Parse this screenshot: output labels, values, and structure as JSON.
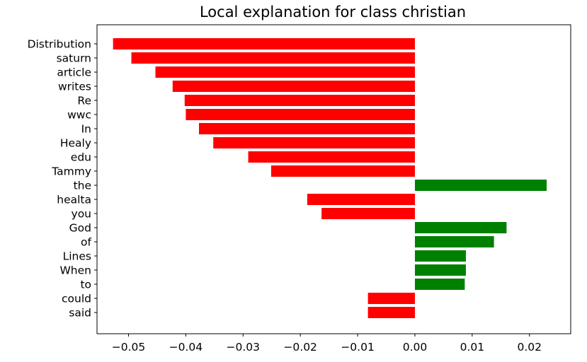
{
  "chart_data": {
    "type": "bar",
    "orientation": "horizontal",
    "title": "Local explanation for class christian",
    "xlabel": "",
    "ylabel": "",
    "xlim": [
      -0.0555,
      0.0272
    ],
    "grid": false,
    "legend": "none",
    "colors": {
      "negative": "#ff0000",
      "positive": "#008000"
    },
    "xticks": [
      -0.05,
      -0.04,
      -0.03,
      -0.02,
      -0.01,
      0.0,
      0.01,
      0.02
    ],
    "xtick_labels": [
      "−0.05",
      "−0.04",
      "−0.03",
      "−0.02",
      "−0.01",
      "0.00",
      "0.01",
      "0.02"
    ],
    "categories": [
      "Distribution",
      "saturn",
      "article",
      "writes",
      "Re",
      "wwc",
      "In",
      "Healy",
      "edu",
      "Tammy",
      "the",
      "healta",
      "you",
      "God",
      "of",
      "Lines",
      "When",
      "to",
      "could",
      "said"
    ],
    "values": [
      -0.0527,
      -0.0495,
      -0.0453,
      -0.0423,
      -0.0402,
      -0.04,
      -0.0377,
      -0.0352,
      -0.0291,
      -0.0251,
      0.023,
      -0.0188,
      -0.0163,
      0.016,
      0.0138,
      0.0089,
      0.0089,
      0.0087,
      -0.0082,
      -0.0082
    ]
  }
}
